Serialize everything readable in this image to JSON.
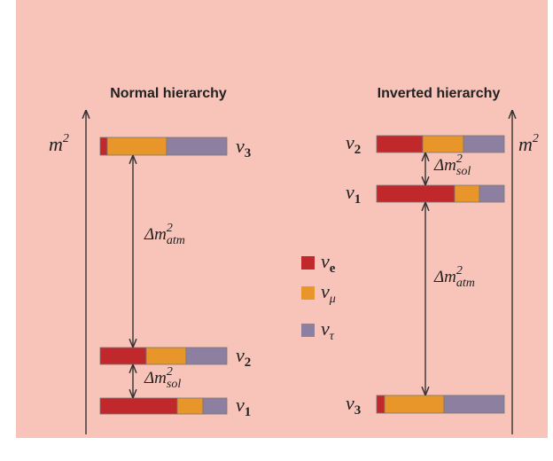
{
  "normal": {
    "title": "Normal hierarchy",
    "axis_label": {
      "base": "m",
      "sup": "2"
    },
    "levels": [
      {
        "name": "ν",
        "sub": "3"
      },
      {
        "name": "ν",
        "sub": "2"
      },
      {
        "name": "ν",
        "sub": "1"
      }
    ],
    "gaps": [
      {
        "base": "Δm",
        "sup": "2",
        "sub": "atm"
      },
      {
        "base": "Δm",
        "sup": "2",
        "sub": "sol"
      }
    ]
  },
  "inverted": {
    "title": "Inverted hierarchy",
    "axis_label": {
      "base": "m",
      "sup": "2"
    },
    "levels": [
      {
        "name": "ν",
        "sub": "2"
      },
      {
        "name": "ν",
        "sub": "1"
      },
      {
        "name": "ν",
        "sub": "3"
      }
    ],
    "gaps": [
      {
        "base": "Δm",
        "sup": "2",
        "sub": "sol"
      },
      {
        "base": "Δm",
        "sup": "2",
        "sub": "atm"
      }
    ]
  },
  "legend": [
    {
      "name": "ν",
      "sub": "e"
    },
    {
      "name": "ν",
      "sub": "μ"
    },
    {
      "name": "ν",
      "sub": "τ"
    }
  ]
}
